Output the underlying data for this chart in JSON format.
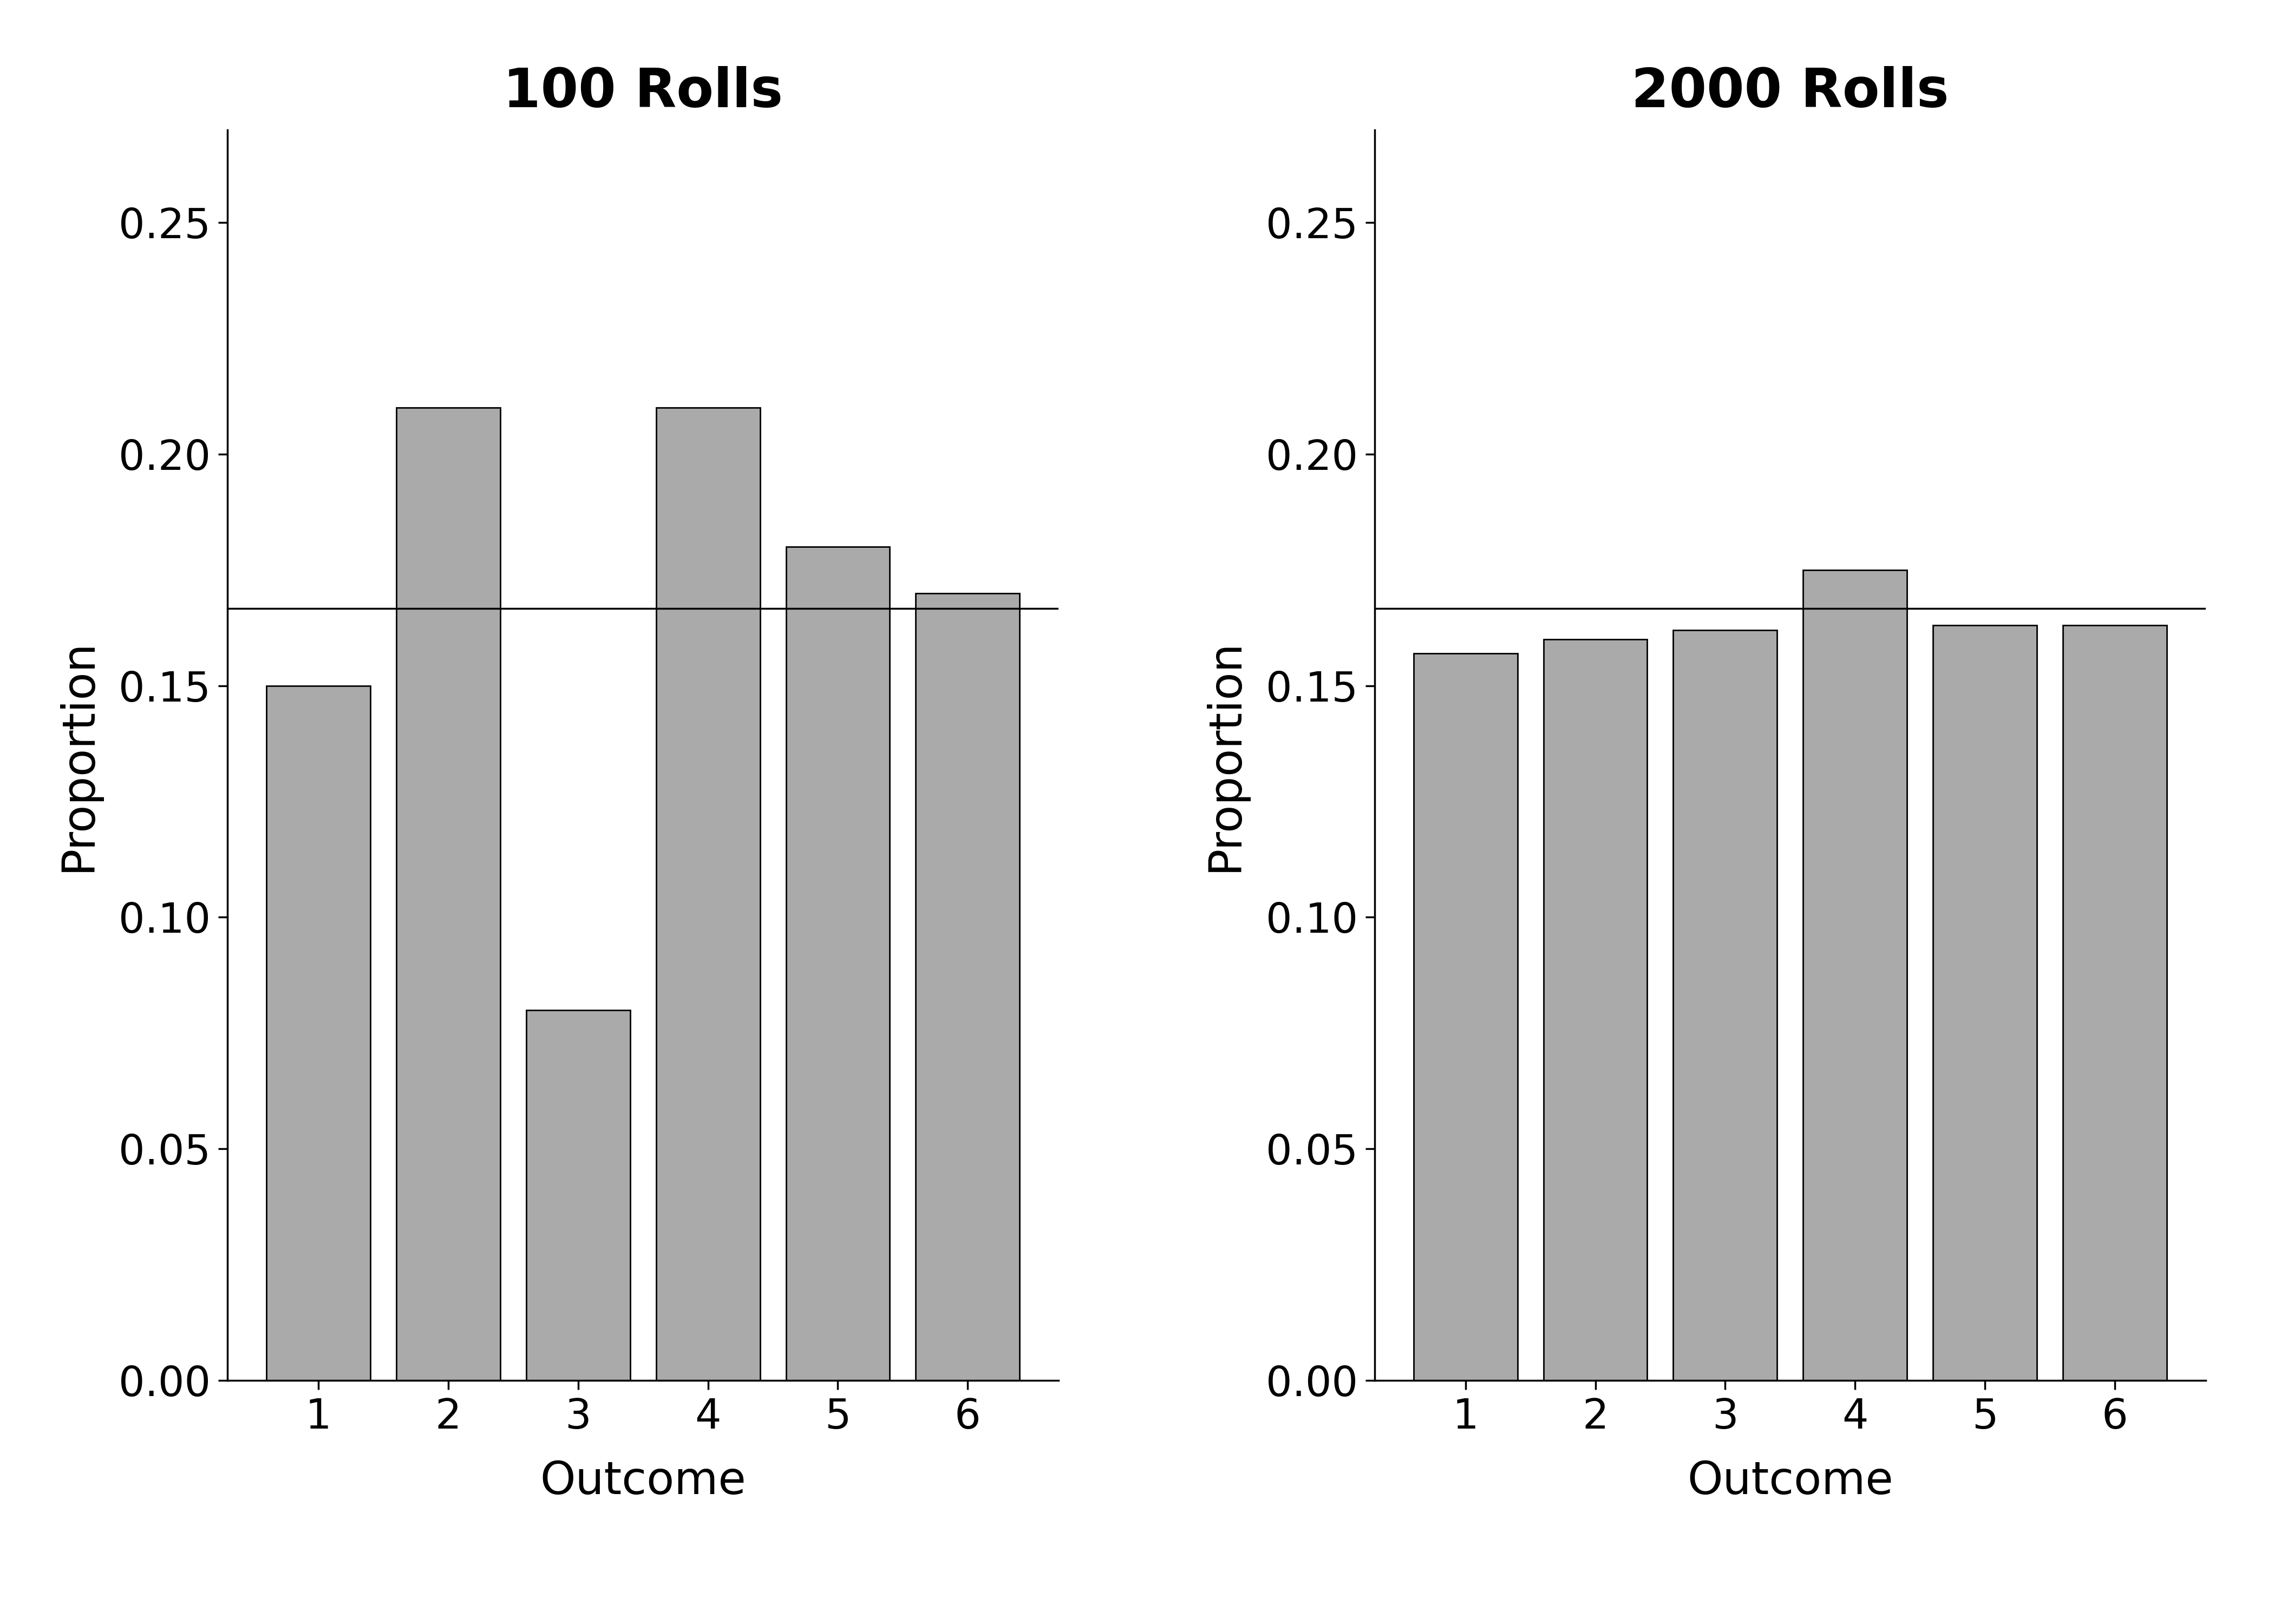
{
  "left_title": "100 Rolls",
  "right_title": "2000 Rolls",
  "xlabel": "Outcome",
  "ylabel": "Proportion",
  "categories": [
    1,
    2,
    3,
    4,
    5,
    6
  ],
  "values_100": [
    0.15,
    0.21,
    0.08,
    0.21,
    0.18,
    0.17
  ],
  "values_2000": [
    0.157,
    0.16,
    0.162,
    0.175,
    0.163,
    0.163
  ],
  "hline": 0.16667,
  "ylim": [
    0.0,
    0.27
  ],
  "yticks": [
    0.0,
    0.05,
    0.1,
    0.15,
    0.2,
    0.25
  ],
  "bar_color": "#aaaaaa",
  "bar_edgecolor": "#000000",
  "hline_color": "#000000",
  "background_color": "#ffffff",
  "title_fontsize": 72,
  "label_fontsize": 60,
  "tick_fontsize": 55
}
